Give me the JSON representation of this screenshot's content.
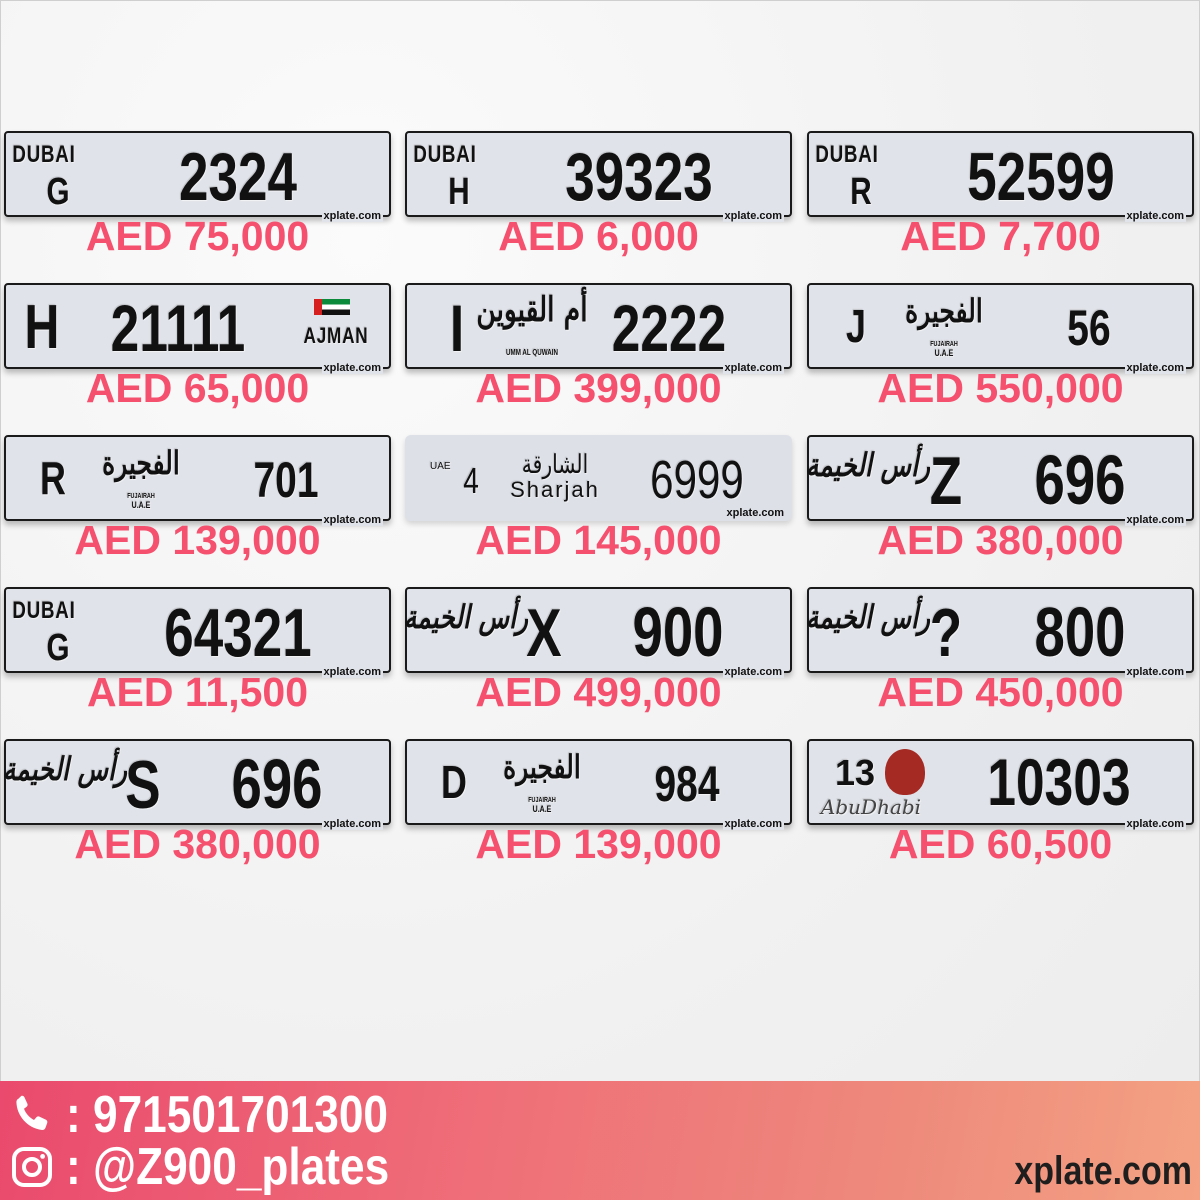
{
  "brand": "xplate.com",
  "colors": {
    "price": "#f5506e",
    "footer_start": "#ea4a6d",
    "footer_end": "#f4a283"
  },
  "plates": [
    {
      "emirate": "dubai",
      "logo": "DUBAI",
      "code": "G",
      "number": "2324",
      "price": "AED 75,000"
    },
    {
      "emirate": "dubai",
      "logo": "DUBAI",
      "code": "H",
      "number": "39323",
      "price": "AED 6,000"
    },
    {
      "emirate": "dubai",
      "logo": "DUBAI",
      "code": "R",
      "number": "52599",
      "price": "AED 7,700"
    },
    {
      "emirate": "ajman",
      "logo": "AJMAN",
      "code": "H",
      "number": "21111",
      "price": "AED 65,000"
    },
    {
      "emirate": "uaq",
      "logo": "أم القيوين",
      "sub": "UMM AL QUWAIN",
      "code": "I",
      "number": "2222",
      "price": "AED 399,000"
    },
    {
      "emirate": "fujairah",
      "logo": "الفجيرة",
      "sub": "FUJAIRAH",
      "sub2": "U.A.E",
      "code": "J",
      "number": "56",
      "price": "AED 550,000"
    },
    {
      "emirate": "fujairah",
      "logo": "الفجيرة",
      "sub": "FUJAIRAH",
      "sub2": "U.A.E",
      "code": "R",
      "number": "701",
      "price": "AED 139,000"
    },
    {
      "emirate": "sharjah",
      "uae": "UAE",
      "logo": "الشارقة",
      "sub": "Sharjah",
      "code": "4",
      "number": "6999",
      "price": "AED 145,000"
    },
    {
      "emirate": "rak",
      "logo": "رأس الخيمة",
      "code": "Z",
      "number": "696",
      "price": "AED 380,000"
    },
    {
      "emirate": "dubai",
      "logo": "DUBAI",
      "code": "G",
      "number": "64321",
      "price": "AED 11,500"
    },
    {
      "emirate": "rak",
      "logo": "رأس الخيمة",
      "code": "X",
      "number": "900",
      "price": "AED 499,000"
    },
    {
      "emirate": "rak",
      "logo": "رأس الخيمة",
      "code": "?",
      "number": "800",
      "price": "AED 450,000"
    },
    {
      "emirate": "rak",
      "logo": "رأس الخيمة",
      "code": "S",
      "number": "696",
      "price": "AED 380,000"
    },
    {
      "emirate": "fujairah",
      "logo": "الفجيرة",
      "sub": "FUJAIRAH",
      "sub2": "U.A.E",
      "code": "D",
      "number": "984",
      "price": "AED 139,000"
    },
    {
      "emirate": "abudhabi",
      "logo": "AbuDhabi",
      "code": "13",
      "number": "10303",
      "price": "AED 60,500"
    }
  ],
  "footer": {
    "phone_icon": "phone-icon",
    "phone": ": 971501701300",
    "instagram_icon": "instagram-icon",
    "instagram": ": @Z900_plates",
    "site": "xplate.com"
  }
}
